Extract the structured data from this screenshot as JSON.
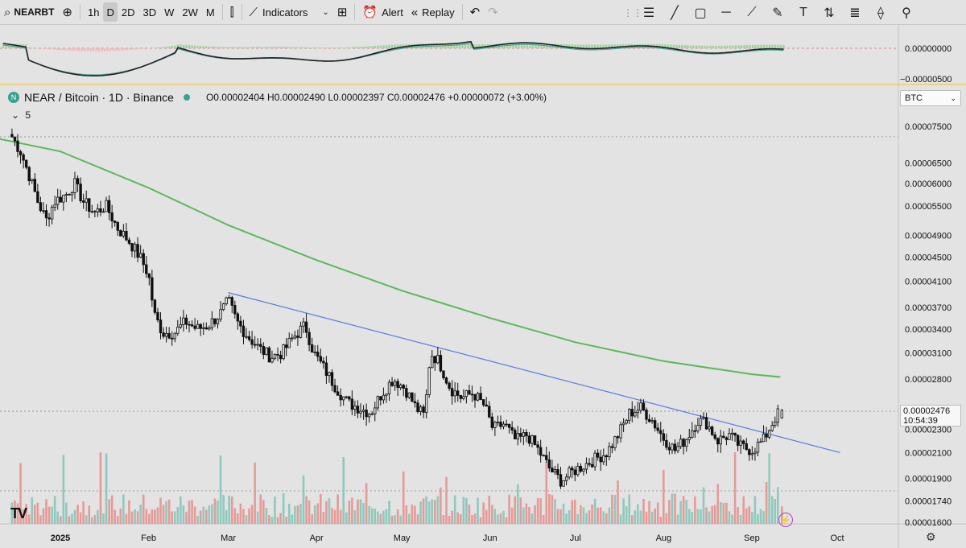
{
  "toolbar": {
    "symbol": "NEARBT",
    "intervals": [
      "1h",
      "D",
      "2D",
      "3D",
      "W",
      "2W",
      "M"
    ],
    "active_interval": "D",
    "indicators_label": "Indicators",
    "alert_label": "Alert",
    "replay_label": "Replay"
  },
  "legend": {
    "title": "NEAR / Bitcoin · 1D · Binance",
    "ohlc": "O0.00002404 H0.00002490 L0.00002397 C0.00002476 +0.00000072 (+3.00%)",
    "collapse_count": "5",
    "badge": "N"
  },
  "currency": {
    "label": "BTC"
  },
  "price_label": {
    "price": "0.00002476",
    "countdown": "10:54:39"
  },
  "chart_data": [
    {
      "type": "candlestick",
      "title": "NEAR / Bitcoin · 1D · Binance",
      "x_ticks": [
        "2025",
        "Feb",
        "Mar",
        "Apr",
        "May",
        "Jun",
        "Jul",
        "Aug",
        "Sep",
        "Oct"
      ],
      "y_scale": "log",
      "y_ticks": [
        "0.00007500",
        "0.00006500",
        "0.00006000",
        "0.00005500",
        "0.00004900",
        "0.00004500",
        "0.00004100",
        "0.00003700",
        "0.00003400",
        "0.00003100",
        "0.00002800",
        "0.00002300",
        "0.00002100",
        "0.00001900",
        "0.00001740",
        "0.00001600"
      ],
      "ylim": [
        1.59e-05,
        8.1e-05
      ],
      "last": {
        "open": 2.404e-05,
        "high": 2.49e-05,
        "low": 2.397e-05,
        "close": 2.476e-05
      },
      "close_path": [
        [
          "2024-12-15",
          7.2e-05
        ],
        [
          "2024-12-18",
          6.8e-05
        ],
        [
          "2024-12-21",
          6.2e-05
        ],
        [
          "2024-12-24",
          5.6e-05
        ],
        [
          "2024-12-27",
          5.2e-05
        ],
        [
          "2024-12-30",
          5.6e-05
        ],
        [
          "2025-01-03",
          5.75e-05
        ],
        [
          "2025-01-06",
          6e-05
        ],
        [
          "2025-01-09",
          5.6e-05
        ],
        [
          "2025-01-13",
          5.35e-05
        ],
        [
          "2025-01-17",
          5.5e-05
        ],
        [
          "2025-01-21",
          5.05e-05
        ],
        [
          "2025-01-25",
          4.8e-05
        ],
        [
          "2025-01-29",
          4.5e-05
        ],
        [
          "2025-02-01",
          4.2e-05
        ],
        [
          "2025-02-03",
          3.6e-05
        ],
        [
          "2025-02-06",
          3.35e-05
        ],
        [
          "2025-02-10",
          3.35e-05
        ],
        [
          "2025-02-14",
          3.5e-05
        ],
        [
          "2025-02-18",
          3.4e-05
        ],
        [
          "2025-02-22",
          3.45e-05
        ],
        [
          "2025-02-26",
          3.6e-05
        ],
        [
          "2025-03-01",
          3.8e-05
        ],
        [
          "2025-03-04",
          3.5e-05
        ],
        [
          "2025-03-08",
          3.3e-05
        ],
        [
          "2025-03-12",
          3.15e-05
        ],
        [
          "2025-03-16",
          3.05e-05
        ],
        [
          "2025-03-20",
          3.1e-05
        ],
        [
          "2025-03-24",
          3.3e-05
        ],
        [
          "2025-03-28",
          3.45e-05
        ],
        [
          "2025-03-31",
          3.1e-05
        ],
        [
          "2025-04-04",
          2.9e-05
        ],
        [
          "2025-04-08",
          2.7e-05
        ],
        [
          "2025-04-12",
          2.55e-05
        ],
        [
          "2025-04-16",
          2.5e-05
        ],
        [
          "2025-04-20",
          2.45e-05
        ],
        [
          "2025-04-24",
          2.65e-05
        ],
        [
          "2025-04-28",
          2.8e-05
        ],
        [
          "2025-05-02",
          2.7e-05
        ],
        [
          "2025-05-06",
          2.5e-05
        ],
        [
          "2025-05-09",
          2.42e-05
        ],
        [
          "2025-05-11",
          3.1e-05
        ],
        [
          "2025-05-14",
          3e-05
        ],
        [
          "2025-05-18",
          2.7e-05
        ],
        [
          "2025-05-22",
          2.6e-05
        ],
        [
          "2025-05-26",
          2.65e-05
        ],
        [
          "2025-05-30",
          2.52e-05
        ],
        [
          "2025-06-02",
          2.3e-05
        ],
        [
          "2025-06-06",
          2.35e-05
        ],
        [
          "2025-06-10",
          2.2e-05
        ],
        [
          "2025-06-14",
          2.25e-05
        ],
        [
          "2025-06-18",
          2.12e-05
        ],
        [
          "2025-06-22",
          1.97e-05
        ],
        [
          "2025-06-26",
          1.88e-05
        ],
        [
          "2025-06-30",
          1.95e-05
        ],
        [
          "2025-07-04",
          2e-05
        ],
        [
          "2025-07-08",
          2.05e-05
        ],
        [
          "2025-07-12",
          2.1e-05
        ],
        [
          "2025-07-16",
          2.25e-05
        ],
        [
          "2025-07-20",
          2.45e-05
        ],
        [
          "2025-07-24",
          2.5e-05
        ],
        [
          "2025-07-28",
          2.38e-05
        ],
        [
          "2025-08-01",
          2.22e-05
        ],
        [
          "2025-08-05",
          2.12e-05
        ],
        [
          "2025-08-09",
          2.22e-05
        ],
        [
          "2025-08-13",
          2.38e-05
        ],
        [
          "2025-08-16",
          2.36e-05
        ],
        [
          "2025-08-20",
          2.2e-05
        ],
        [
          "2025-08-24",
          2.25e-05
        ],
        [
          "2025-08-28",
          2.15e-05
        ],
        [
          "2025-09-01",
          2.12e-05
        ],
        [
          "2025-09-05",
          2.2e-05
        ],
        [
          "2025-09-09",
          2.4e-05
        ],
        [
          "2025-09-11",
          2.47e-05
        ]
      ],
      "ma_line": [
        [
          "2024-12-10",
          7.15e-05
        ],
        [
          "2025-01-01",
          6.8e-05
        ],
        [
          "2025-02-01",
          5.9e-05
        ],
        [
          "2025-03-01",
          5.1e-05
        ],
        [
          "2025-04-01",
          4.45e-05
        ],
        [
          "2025-05-01",
          3.95e-05
        ],
        [
          "2025-06-01",
          3.55e-05
        ],
        [
          "2025-07-01",
          3.23e-05
        ],
        [
          "2025-08-01",
          3e-05
        ],
        [
          "2025-09-01",
          2.85e-05
        ],
        [
          "2025-09-11",
          2.82e-05
        ]
      ],
      "trendline": [
        [
          "2025-03-01",
          3.92e-05
        ],
        [
          "2025-10-02",
          2.1e-05
        ]
      ],
      "volume_unit": "relative"
    },
    {
      "type": "line",
      "name": "oscillator",
      "y_ticks": [
        "0.00000000",
        "−0.00000500"
      ],
      "ylim": [
        -5.6e-06,
        1.4e-06
      ]
    }
  ]
}
